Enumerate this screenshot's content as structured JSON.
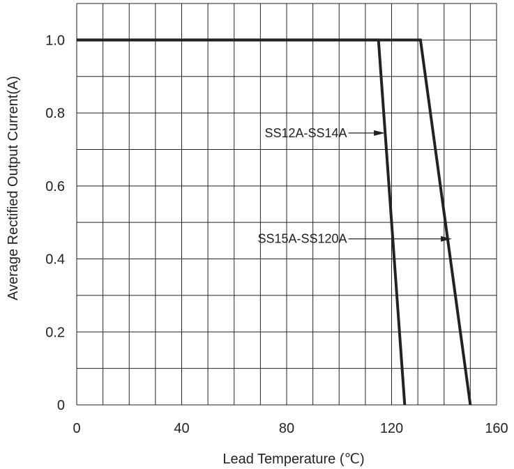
{
  "chart_data": {
    "type": "line",
    "xlabel": "Lead Temperature (℃)",
    "ylabel": "Average Rectified Output Current(A)",
    "xlim": [
      0,
      160
    ],
    "ylim": [
      0,
      1.0
    ],
    "x_ticks": [
      "0",
      "40",
      "80",
      "120",
      "160"
    ],
    "y_ticks": [
      "0",
      "0.2",
      "0.4",
      "0.6",
      "0.8",
      "1.0"
    ],
    "x_tick_values": [
      0,
      40,
      80,
      120,
      160
    ],
    "y_tick_values": [
      0,
      0.2,
      0.4,
      0.6,
      0.8,
      1.0
    ],
    "grid": true,
    "series": [
      {
        "name": "SS12A-SS14A",
        "x": [
          0,
          115,
          125
        ],
        "y": [
          1.0,
          1.0,
          0
        ]
      },
      {
        "name": "SS15A-SS120A",
        "x": [
          0,
          131,
          150
        ],
        "y": [
          1.0,
          1.0,
          0
        ]
      }
    ],
    "annotations": [
      {
        "text": "SS12A-SS14A",
        "text_x": 103,
        "text_y": 0.745,
        "arrow_to_x": 117.5,
        "arrow_to_y": 0.745
      },
      {
        "text": "SS15A-SS120A",
        "text_x": 103,
        "text_y": 0.455,
        "arrow_to_x": 143,
        "arrow_to_y": 0.455
      }
    ],
    "colors": {
      "line": "#222222",
      "grid": "#222222"
    }
  }
}
